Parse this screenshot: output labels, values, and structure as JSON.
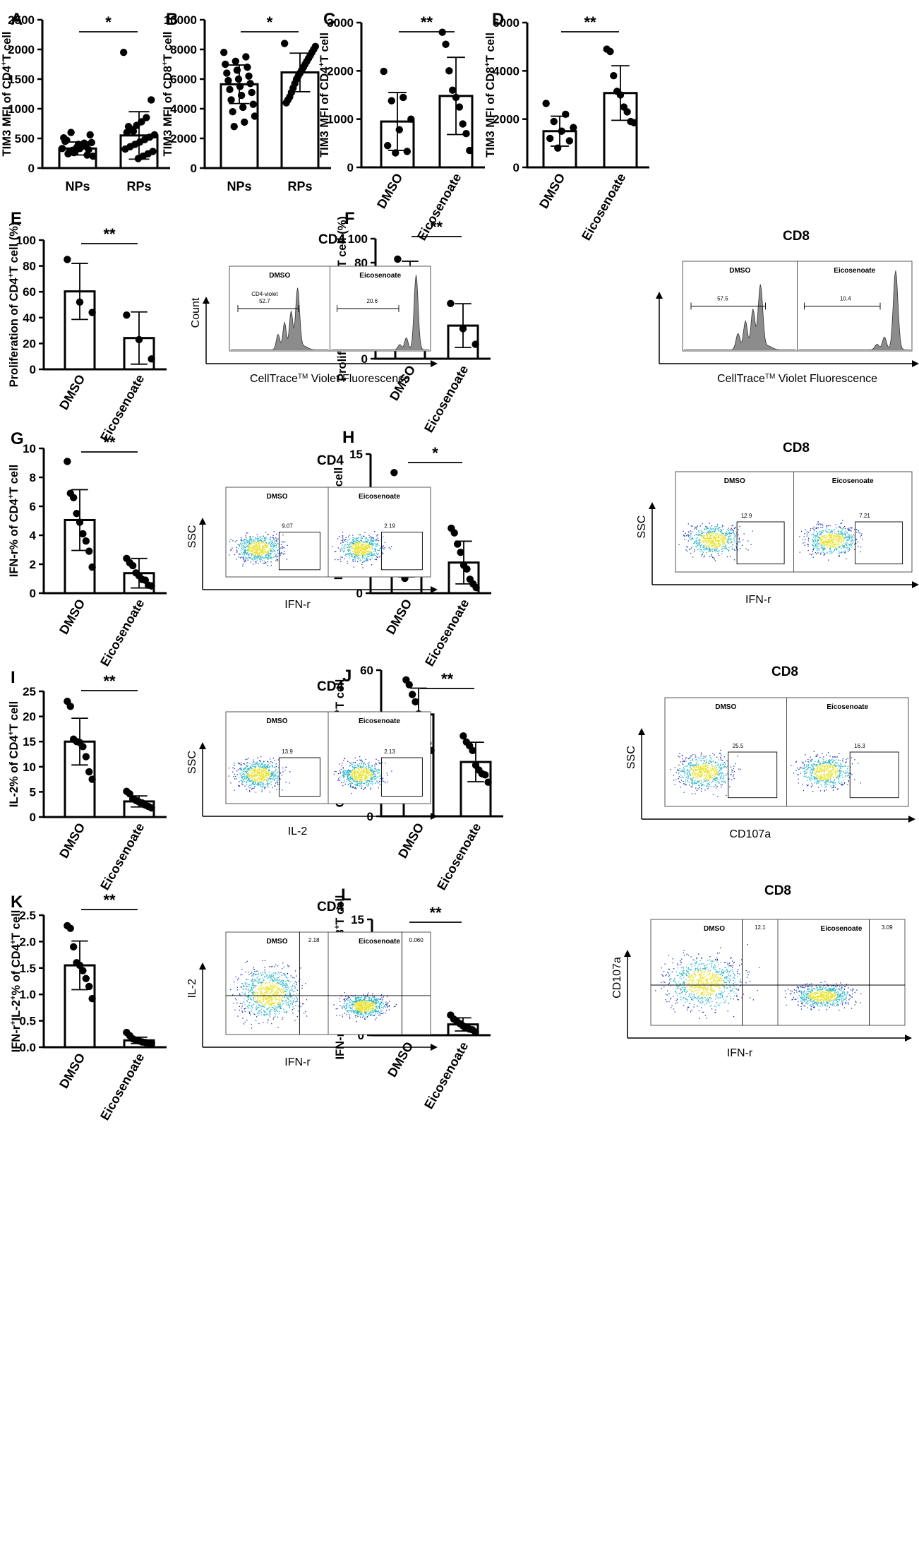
{
  "chart_data": [
    {
      "panel": "A",
      "type": "bar",
      "title": "",
      "categories": [
        "NPs",
        "RPs"
      ],
      "values": [
        330,
        550
      ],
      "errors": [
        110,
        400
      ],
      "ylabel_pre": "TIM3 MFI of CD4",
      "ylabel_sup": "+",
      "ylabel_post": "T cell",
      "ylim": [
        0,
        2500
      ],
      "ticks": [
        0,
        500,
        1000,
        1500,
        2000,
        2500
      ],
      "significance": "*",
      "points": [
        [
          330,
          420,
          260,
          510,
          380,
          290,
          450,
          220,
          350,
          470,
          310,
          400,
          240,
          560,
          330,
          280,
          430,
          360,
          600,
          200,
          390,
          300
        ],
        [
          1950,
          1150,
          850,
          780,
          720,
          650,
          600,
          560,
          520,
          480,
          440,
          400,
          360,
          320,
          280,
          240,
          200,
          160,
          620,
          700
        ]
      ]
    },
    {
      "panel": "B",
      "type": "bar",
      "categories": [
        "NPs",
        "RPs"
      ],
      "values": [
        5650,
        6450
      ],
      "errors": [
        1300,
        1300
      ],
      "ylabel_pre": "TIM3 MFI of CD8",
      "ylabel_sup": "+",
      "ylabel_post": "T cell",
      "ylim": [
        0,
        10000
      ],
      "ticks": [
        0,
        2000,
        4000,
        6000,
        8000,
        10000
      ],
      "significance": "*",
      "points": [
        [
          7800,
          7500,
          7200,
          7000,
          6800,
          6600,
          6400,
          6200,
          6000,
          5900,
          5700,
          5500,
          5300,
          5100,
          4900,
          4600,
          4300,
          4100,
          3800,
          3500,
          3100,
          2800
        ],
        [
          8400,
          8200,
          8000,
          7800,
          7600,
          7400,
          7200,
          7000,
          6800,
          6600,
          6400,
          6200,
          6000,
          5700,
          5400,
          5100,
          4800,
          4600,
          4400
        ]
      ]
    },
    {
      "panel": "C",
      "type": "bar",
      "categories": [
        "DMSO",
        "Eicosenoate"
      ],
      "values": [
        950,
        1480
      ],
      "errors": [
        600,
        800
      ],
      "ylabel_pre": "TIM3 MFI of CD4",
      "ylabel_sup": "+",
      "ylabel_post": "T cell",
      "ylim": [
        0,
        3000
      ],
      "ticks": [
        0,
        1000,
        2000,
        3000
      ],
      "significance": "**",
      "points": [
        [
          1990,
          1450,
          1380,
          1000,
          780,
          450,
          330,
          300
        ],
        [
          2800,
          2550,
          2000,
          1600,
          1450,
          1250,
          900,
          700,
          350
        ]
      ]
    },
    {
      "panel": "D",
      "type": "bar",
      "categories": [
        "DMSO",
        "Eicosenoate"
      ],
      "values": [
        1500,
        3080
      ],
      "errors": [
        620,
        1130
      ],
      "ylabel_pre": "TIM3 MFI of CD8",
      "ylabel_sup": "+",
      "ylabel_post": "T cell",
      "ylim": [
        0,
        6000
      ],
      "ticks": [
        0,
        2000,
        4000,
        6000
      ],
      "significance": "**",
      "points": [
        [
          2650,
          2200,
          1900,
          1650,
          1500,
          1200,
          1100,
          800
        ],
        [
          4900,
          4800,
          3800,
          3150,
          3000,
          2500,
          2300,
          1900,
          1850
        ]
      ]
    },
    {
      "panel": "E",
      "type": "bar",
      "categories": [
        "DMSO",
        "Eicosenoate"
      ],
      "values": [
        60.3,
        24.2
      ],
      "errors": [
        21.7,
        20.2
      ],
      "ylabel_pre": "Proliferation of CD4",
      "ylabel_sup": "+",
      "ylabel_post": "T cell (%)",
      "ylim": [
        0,
        100
      ],
      "ticks": [
        0,
        20,
        40,
        60,
        80,
        100
      ],
      "significance": "**",
      "points": [
        [
          85,
          52,
          44
        ],
        [
          42,
          23,
          8
        ]
      ]
    },
    {
      "panel": "F",
      "type": "bar",
      "categories": [
        "DMSO",
        "Eicosenoate"
      ],
      "values": [
        65.3,
        27.6
      ],
      "errors": [
        15.9,
        18.2
      ],
      "ylabel_pre": "Proliferation of CD8",
      "ylabel_sup": "+",
      "ylabel_post": "T cell (%)",
      "ylim": [
        0,
        100
      ],
      "ticks": [
        0,
        20,
        40,
        60,
        80,
        100
      ],
      "significance": "**",
      "points": [
        [
          83,
          70,
          57
        ],
        [
          46,
          25,
          12
        ]
      ]
    },
    {
      "panel": "G",
      "type": "bar",
      "categories": [
        "DMSO",
        "Eicosenoate"
      ],
      "values": [
        5.05,
        1.38
      ],
      "errors": [
        2.1,
        1.02
      ],
      "ylabel_pre": "IFN-r% of CD4",
      "ylabel_sup": "+",
      "ylabel_post": "T cell",
      "ylim": [
        0,
        10
      ],
      "ticks": [
        0,
        2,
        4,
        6,
        8,
        10
      ],
      "significance": "**",
      "points": [
        [
          9.1,
          6.9,
          6.6,
          5.5,
          4.9,
          4.1,
          3.6,
          2.9,
          1.8
        ],
        [
          2.4,
          2.1,
          1.9,
          1.4,
          1.2,
          0.95,
          0.9,
          0.55,
          0.5
        ]
      ]
    },
    {
      "panel": "H",
      "type": "bar",
      "categories": [
        "DMSO",
        "Eicosenoate"
      ],
      "values": [
        5.1,
        3.3
      ],
      "errors": [
        3.35,
        2.3
      ],
      "ylabel_pre": "IFN-r% of CD8",
      "ylabel_sup": "+",
      "ylabel_post": "T cell",
      "ylim": [
        0,
        15
      ],
      "ticks": [
        0,
        5,
        10,
        15
      ],
      "significance": "*",
      "points": [
        [
          13,
          7.2,
          6.3,
          5.6,
          4.5,
          3.6,
          2.7,
          1.6
        ],
        [
          7.0,
          6.5,
          5.3,
          4.4,
          3.0,
          2.6,
          1.5,
          1.0,
          0.6
        ]
      ]
    },
    {
      "panel": "I",
      "type": "bar",
      "categories": [
        "DMSO",
        "Eicosenoate"
      ],
      "values": [
        15.0,
        3.1
      ],
      "errors": [
        4.65,
        1.1
      ],
      "ylabel_pre": "IL-2% of CD4",
      "ylabel_sup": "+",
      "ylabel_post": "T cell",
      "ylim": [
        0,
        25
      ],
      "ticks": [
        0,
        5,
        10,
        15,
        20,
        25
      ],
      "significance": "**",
      "points": [
        [
          23,
          22,
          15.5,
          15,
          14.8,
          14,
          12,
          9,
          7.5
        ],
        [
          5.1,
          4.6,
          3.6,
          3.3,
          3.0,
          2.8,
          2.4,
          2.1,
          1.8
        ]
      ]
    },
    {
      "panel": "J",
      "type": "bar",
      "categories": [
        "DMSO",
        "Eicosenoate"
      ],
      "values": [
        41.8,
        22.3
      ],
      "errors": [
        10.8,
        8.1
      ],
      "ylabel_pre": "CD107a% of CD8",
      "ylabel_sup": "+",
      "ylabel_post": "T cell",
      "ylim": [
        0,
        60
      ],
      "ticks": [
        0,
        20,
        40,
        60
      ],
      "significance": "**",
      "points": [
        [
          56,
          54,
          50,
          47,
          42,
          40,
          36,
          30,
          27
        ],
        [
          33,
          30.5,
          29,
          27,
          21,
          19,
          17.5,
          17,
          14
        ]
      ]
    },
    {
      "panel": "K",
      "type": "bar",
      "categories": [
        "DMSO",
        "Eicosenoate"
      ],
      "values": [
        1.55,
        0.13
      ],
      "errors": [
        0.46,
        0.06
      ],
      "ylabel_pre": "IFN-r",
      "ylabel_sup": "+",
      "ylabel_mid": "IL-2",
      "ylabel_sup2": "+",
      "ylabel_post": "% of CD4",
      "ylabel_sup3": "+",
      "ylabel_post2": "T cell",
      "ylim": [
        0,
        2.5
      ],
      "ticks": [
        0,
        0.5,
        1.0,
        1.5,
        2.0,
        2.5
      ],
      "tick_labels": [
        "0.0",
        "0.5",
        "1.0",
        "1.5",
        "2.0",
        "2.5"
      ],
      "significance": "**",
      "points": [
        [
          2.3,
          2.25,
          1.9,
          1.6,
          1.55,
          1.45,
          1.3,
          1.15,
          0.92
        ],
        [
          0.28,
          0.22,
          0.16,
          0.13,
          0.12,
          0.1,
          0.09,
          0.08,
          0.07
        ]
      ]
    },
    {
      "panel": "L",
      "type": "bar",
      "categories": [
        "DMSO",
        "Eicosenoate"
      ],
      "values": [
        4.5,
        1.4
      ],
      "errors": [
        3.3,
        0.85
      ],
      "ylabel_pre": "IFN-r",
      "ylabel_sup": "+",
      "ylabel_mid": "CD107a",
      "ylabel_sup2": "+",
      "ylabel_post": "% of CD8",
      "ylabel_sup3": "+",
      "ylabel_post2": "T cell",
      "ylim": [
        0,
        15
      ],
      "ticks": [
        0,
        5,
        10,
        15
      ],
      "significance": "**",
      "points": [
        [
          12.1,
          6.8,
          5.6,
          4.5,
          4.0,
          3.3,
          2.9,
          1.9,
          1.3
        ],
        [
          2.6,
          2.1,
          1.8,
          1.5,
          1.2,
          1.0,
          0.8,
          0.7,
          0.4
        ]
      ]
    }
  ],
  "flow_panels": [
    {
      "id": "E",
      "title": "CD4",
      "left": "DMSO",
      "right": "Eicosenoate",
      "gate_left_name": "CD4-violet",
      "gate_left": "52.7",
      "gate_right": "20.6",
      "ylabel": "Count",
      "xlabel_pre": "CellTrace",
      "xlabel_sup": "TM",
      "xlabel_post": " Violet Fluorescence"
    },
    {
      "id": "F",
      "title": "CD8",
      "left": "DMSO",
      "right": "Eicosenoate",
      "gate_left_name": "",
      "gate_left": "57.5",
      "gate_right": "10.4",
      "ylabel": "",
      "xlabel_pre": "CellTrace",
      "xlabel_sup": "TM",
      "xlabel_post": " Violet Fluorescence"
    },
    {
      "id": "G",
      "title": "CD4",
      "left": "DMSO",
      "right": "Eicosenoate",
      "gate_left": "9.07",
      "gate_right": "2.19",
      "ylabel": "SSC",
      "xlabel": "IFN-r"
    },
    {
      "id": "H",
      "title": "CD8",
      "left": "DMSO",
      "right": "Eicosenoate",
      "gate_left": "12.9",
      "gate_right": "7.21",
      "ylabel": "SSC",
      "xlabel": "IFN-r"
    },
    {
      "id": "I",
      "title": "CD4",
      "left": "DMSO",
      "right": "Eicosenoate",
      "gate_left": "13.9",
      "gate_right": "2.13",
      "ylabel": "SSC",
      "xlabel": "IL-2"
    },
    {
      "id": "J",
      "title": "CD8",
      "left": "DMSO",
      "right": "Eicosenoate",
      "gate_left": "25.5",
      "gate_right": "16.3",
      "ylabel": "SSC",
      "xlabel": "CD107a"
    },
    {
      "id": "K",
      "title": "CD4",
      "left": "DMSO",
      "right": "Eicosenoate",
      "gate_left": "2.18",
      "gate_right": "0.060",
      "ylabel": "IL-2",
      "xlabel": "IFN-r"
    },
    {
      "id": "L",
      "title": "CD8",
      "left": "DMSO",
      "right": "Eicosenoate",
      "gate_left": "12.1",
      "gate_right": "3.09",
      "ylabel": "CD107a",
      "xlabel": "IFN-r"
    }
  ],
  "colors": {
    "ink": "#000000",
    "bar": "#ffffff",
    "histogram": "#8c8c8c",
    "dot_low": "#1a2fb8",
    "dot_mid": "#27b3c7",
    "dot_high": "#e8e22a"
  }
}
